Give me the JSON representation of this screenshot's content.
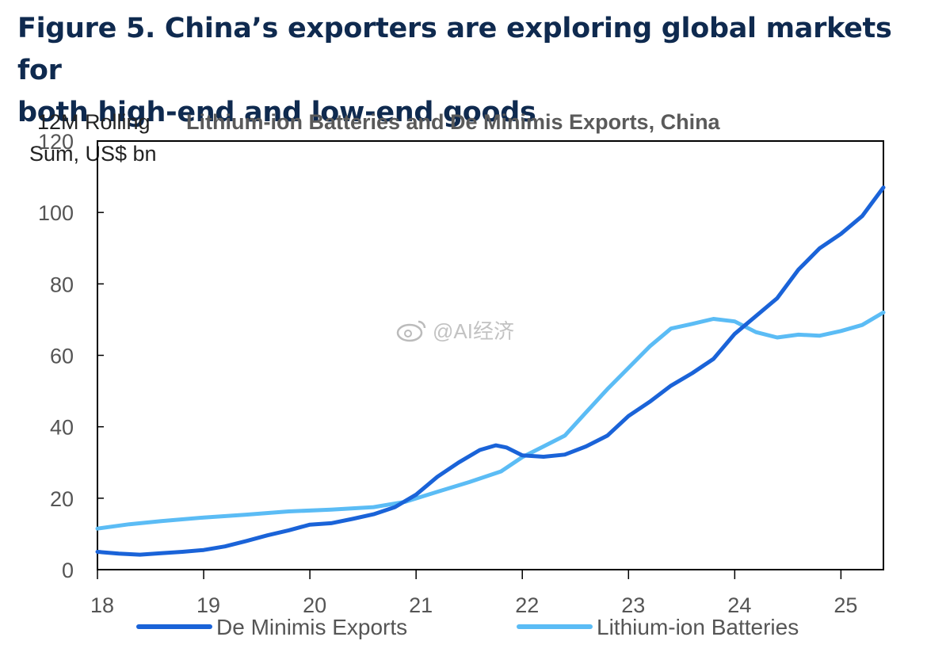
{
  "figure": {
    "title_line1": "Figure 5. China’s exporters are exploring global markets for",
    "title_line2": "both high-end and low-end goods"
  },
  "watermark": {
    "text": "@AI经济"
  },
  "chart_data": {
    "type": "line",
    "title": "Lithium-ion Batteries and De Minimis Exports, China",
    "ylabel_line1": "12M Rolling",
    "ylabel_line2": "Sum, US$ bn",
    "xlabel": "",
    "ylim": [
      0,
      120
    ],
    "xlim": [
      2018,
      2025.4
    ],
    "yticks": [
      0,
      20,
      40,
      60,
      80,
      100,
      120
    ],
    "xticks": [
      {
        "value": 2018,
        "label": "18"
      },
      {
        "value": 2019,
        "label": "19"
      },
      {
        "value": 2020,
        "label": "20"
      },
      {
        "value": 2021,
        "label": "21"
      },
      {
        "value": 2022,
        "label": "22"
      },
      {
        "value": 2023,
        "label": "23"
      },
      {
        "value": 2024,
        "label": "24"
      },
      {
        "value": 2025,
        "label": "25"
      }
    ],
    "grid": false,
    "legend_position": "bottom",
    "series": [
      {
        "name": "De Minimis Exports",
        "color": "#1a63d8",
        "points": [
          [
            2018.0,
            5.0
          ],
          [
            2018.2,
            4.5
          ],
          [
            2018.4,
            4.2
          ],
          [
            2018.6,
            4.6
          ],
          [
            2018.8,
            5.0
          ],
          [
            2019.0,
            5.5
          ],
          [
            2019.2,
            6.5
          ],
          [
            2019.4,
            8.0
          ],
          [
            2019.6,
            9.6
          ],
          [
            2019.8,
            11.0
          ],
          [
            2020.0,
            12.6
          ],
          [
            2020.2,
            13.0
          ],
          [
            2020.4,
            14.2
          ],
          [
            2020.6,
            15.5
          ],
          [
            2020.8,
            17.5
          ],
          [
            2021.0,
            21.0
          ],
          [
            2021.2,
            26.0
          ],
          [
            2021.4,
            30.0
          ],
          [
            2021.6,
            33.5
          ],
          [
            2021.75,
            34.8
          ],
          [
            2021.85,
            34.2
          ],
          [
            2022.0,
            32.0
          ],
          [
            2022.2,
            31.6
          ],
          [
            2022.4,
            32.2
          ],
          [
            2022.6,
            34.5
          ],
          [
            2022.8,
            37.5
          ],
          [
            2023.0,
            43.0
          ],
          [
            2023.2,
            47.0
          ],
          [
            2023.4,
            51.5
          ],
          [
            2023.6,
            55.0
          ],
          [
            2023.8,
            59.0
          ],
          [
            2024.0,
            66.0
          ],
          [
            2024.2,
            71.0
          ],
          [
            2024.4,
            76.0
          ],
          [
            2024.6,
            84.0
          ],
          [
            2024.8,
            90.0
          ],
          [
            2025.0,
            94.0
          ],
          [
            2025.2,
            99.0
          ],
          [
            2025.4,
            107.0
          ]
        ]
      },
      {
        "name": "Lithium-ion Batteries",
        "color": "#5bbcf5",
        "points": [
          [
            2018.0,
            11.5
          ],
          [
            2018.3,
            12.7
          ],
          [
            2018.6,
            13.6
          ],
          [
            2019.0,
            14.6
          ],
          [
            2019.4,
            15.4
          ],
          [
            2019.8,
            16.3
          ],
          [
            2020.2,
            16.8
          ],
          [
            2020.6,
            17.5
          ],
          [
            2020.9,
            19.0
          ],
          [
            2021.2,
            21.8
          ],
          [
            2021.5,
            24.5
          ],
          [
            2021.8,
            27.5
          ],
          [
            2022.0,
            31.5
          ],
          [
            2022.2,
            34.5
          ],
          [
            2022.4,
            37.5
          ],
          [
            2022.6,
            44.0
          ],
          [
            2022.8,
            50.5
          ],
          [
            2023.0,
            56.5
          ],
          [
            2023.2,
            62.5
          ],
          [
            2023.4,
            67.5
          ],
          [
            2023.6,
            68.8
          ],
          [
            2023.8,
            70.2
          ],
          [
            2024.0,
            69.5
          ],
          [
            2024.2,
            66.5
          ],
          [
            2024.4,
            65.0
          ],
          [
            2024.6,
            65.8
          ],
          [
            2024.8,
            65.5
          ],
          [
            2025.0,
            66.8
          ],
          [
            2025.2,
            68.5
          ],
          [
            2025.4,
            72.0
          ]
        ]
      }
    ]
  }
}
